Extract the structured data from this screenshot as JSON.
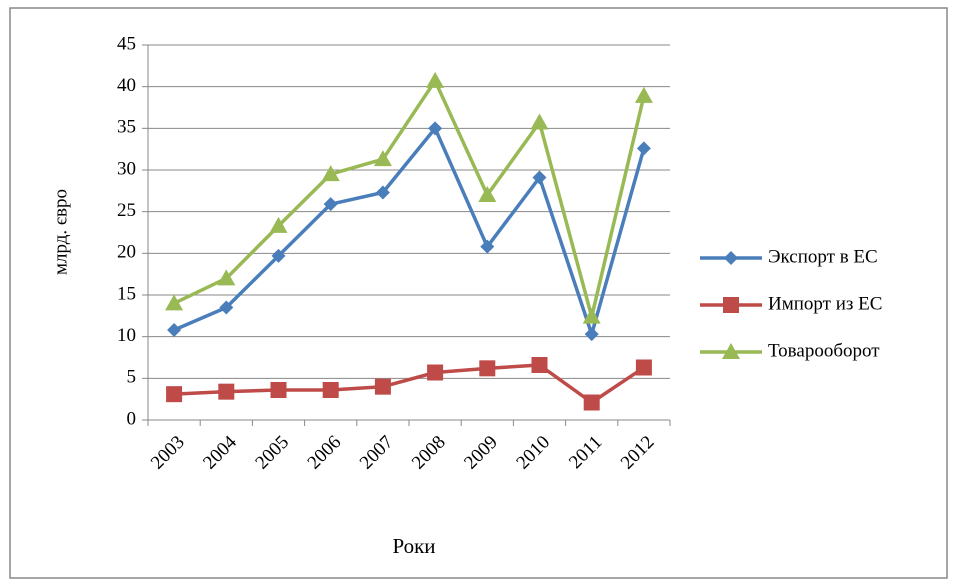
{
  "chart_data": {
    "type": "line",
    "y_label": "млрд. євро",
    "x_label": "Роки",
    "categories": [
      "2003",
      "2004",
      "2005",
      "2006",
      "2007",
      "2008",
      "2009",
      "2010",
      "2011",
      "2012"
    ],
    "series": [
      {
        "name": "Экспорт в ЕС",
        "color": "#4a7ebb",
        "marker": "diamond",
        "values": [
          10.8,
          13.5,
          19.7,
          25.9,
          27.3,
          35.0,
          20.8,
          29.1,
          10.3,
          32.6
        ]
      },
      {
        "name": "Импорт из ЕС",
        "color": "#be4b48",
        "marker": "square",
        "values": [
          3.1,
          3.4,
          3.6,
          3.6,
          4.0,
          5.7,
          6.2,
          6.6,
          2.1,
          6.3
        ]
      },
      {
        "name": "Товарооборот",
        "color": "#98b954",
        "marker": "triangle",
        "values": [
          14.0,
          17.0,
          23.3,
          29.5,
          31.3,
          40.7,
          27.0,
          35.7,
          12.4,
          38.9
        ]
      }
    ],
    "ylim": [
      0,
      45
    ],
    "yticks": [
      0,
      5,
      10,
      15,
      20,
      25,
      30,
      35,
      40,
      45
    ],
    "grid": true,
    "legend": "right"
  }
}
